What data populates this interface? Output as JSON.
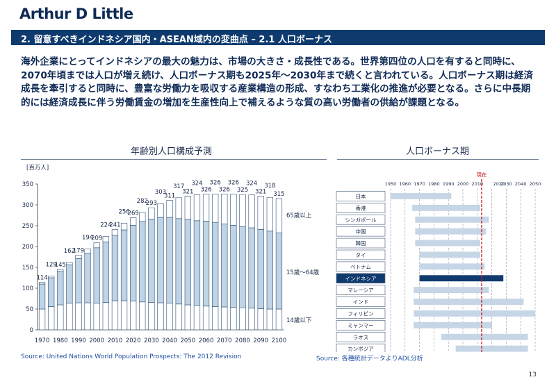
{
  "header": {
    "logo": "Arthur D Little",
    "title": "2. 留意すべきインドネシア国内・ASEAN域内の変曲点 – 2.1 人口ボーナス"
  },
  "intro": "海外企業にとってインドネシアの最大の魅力は、市場の大きさ・成長性である。世界第四位の人口を有すると同時に、2070年頃までは人口が増え続け、人口ボーナス期も2025年～2030年まで続くと言われている。人口ボーナス期は経済成長を牽引すると同時に、豊富な労働力を吸収する産業構造の形成、すなわち工業化の推進が必要となる。さらに中長期的には経済成長に伴う労働賃金の増加を生産性向上で補えるような質の高い労働者の供給が課題となる。",
  "footer": {
    "source_left": "Source: United Nations World Population Prospects: The 2012 Revision",
    "source_right": "Source: 各種統計データよりADL分析",
    "page": "13"
  },
  "chart_data": [
    {
      "type": "bar",
      "title": "年齢別人口構成予測",
      "unit_label": "[百万人]",
      "ylim": [
        0,
        350
      ],
      "yticks": [
        0,
        50,
        100,
        150,
        200,
        250,
        300,
        350
      ],
      "x": [
        1970,
        1975,
        1980,
        1985,
        1990,
        1995,
        2000,
        2005,
        2010,
        2015,
        2020,
        2025,
        2030,
        2035,
        2040,
        2045,
        2050,
        2055,
        2060,
        2065,
        2070,
        2075,
        2080,
        2085,
        2090,
        2095,
        2100
      ],
      "xtick_labels": [
        "1970",
        "1980",
        "1990",
        "2000",
        "2010",
        "2020",
        "2030",
        "2040",
        "2050",
        "2060",
        "2070",
        "2080",
        "2090",
        "2100"
      ],
      "totals": [
        114,
        129,
        145,
        162,
        179,
        194,
        209,
        224,
        241,
        256,
        269,
        282,
        293,
        303,
        311,
        317,
        321,
        324,
        326,
        326,
        326,
        326,
        325,
        324,
        321,
        318,
        315
      ],
      "series": [
        {
          "name": "14歳以下",
          "values": [
            50,
            56,
            60,
            64,
            65,
            65,
            64,
            66,
            70,
            70,
            69,
            67,
            66,
            65,
            64,
            62,
            60,
            58,
            57,
            56,
            55,
            54,
            53,
            52,
            51,
            50,
            50
          ]
        },
        {
          "name": "15歳～64歳",
          "values": [
            60,
            69,
            80,
            92,
            106,
            119,
            133,
            145,
            157,
            170,
            182,
            193,
            200,
            205,
            206,
            205,
            205,
            204,
            204,
            202,
            199,
            197,
            195,
            193,
            190,
            187,
            183
          ]
        },
        {
          "name": "65歳以上",
          "values": [
            4,
            4,
            5,
            6,
            8,
            10,
            12,
            13,
            14,
            16,
            18,
            22,
            27,
            33,
            41,
            50,
            56,
            62,
            65,
            68,
            72,
            75,
            77,
            79,
            80,
            81,
            82
          ]
        }
      ],
      "legend_placement": "right"
    },
    {
      "type": "gantt",
      "title": "人口ボーナス期",
      "x_ticks": [
        1950,
        1960,
        1970,
        1980,
        1990,
        2000,
        2010,
        2020,
        2030,
        2040,
        2050
      ],
      "current_label": "現在",
      "current_year": 2013,
      "rows": [
        {
          "label": "日本",
          "start": 1950,
          "end": 1992,
          "highlight": false
        },
        {
          "label": "香港",
          "start": 1965,
          "end": 2012,
          "highlight": false
        },
        {
          "label": "シンガポール",
          "start": 1967,
          "end": 2018,
          "highlight": false
        },
        {
          "label": "中国",
          "start": 1967,
          "end": 2016,
          "highlight": false
        },
        {
          "label": "韓国",
          "start": 1967,
          "end": 2012,
          "highlight": false
        },
        {
          "label": "タイ",
          "start": 1970,
          "end": 2012,
          "highlight": false
        },
        {
          "label": "ベトナム",
          "start": 1970,
          "end": 2015,
          "highlight": false
        },
        {
          "label": "インドネシア",
          "start": 1970,
          "end": 2028,
          "highlight": true
        },
        {
          "label": "マレーシア",
          "start": 1966,
          "end": 2018,
          "highlight": false
        },
        {
          "label": "インド",
          "start": 1966,
          "end": 2042,
          "highlight": false
        },
        {
          "label": "フィリピン",
          "start": 1966,
          "end": 2050,
          "highlight": false
        },
        {
          "label": "ミャンマー",
          "start": 1966,
          "end": 2020,
          "highlight": false
        },
        {
          "label": "ラオス",
          "start": 1985,
          "end": 2045,
          "highlight": false
        },
        {
          "label": "カンボジア",
          "start": 1995,
          "end": 2045,
          "highlight": false
        }
      ]
    }
  ]
}
